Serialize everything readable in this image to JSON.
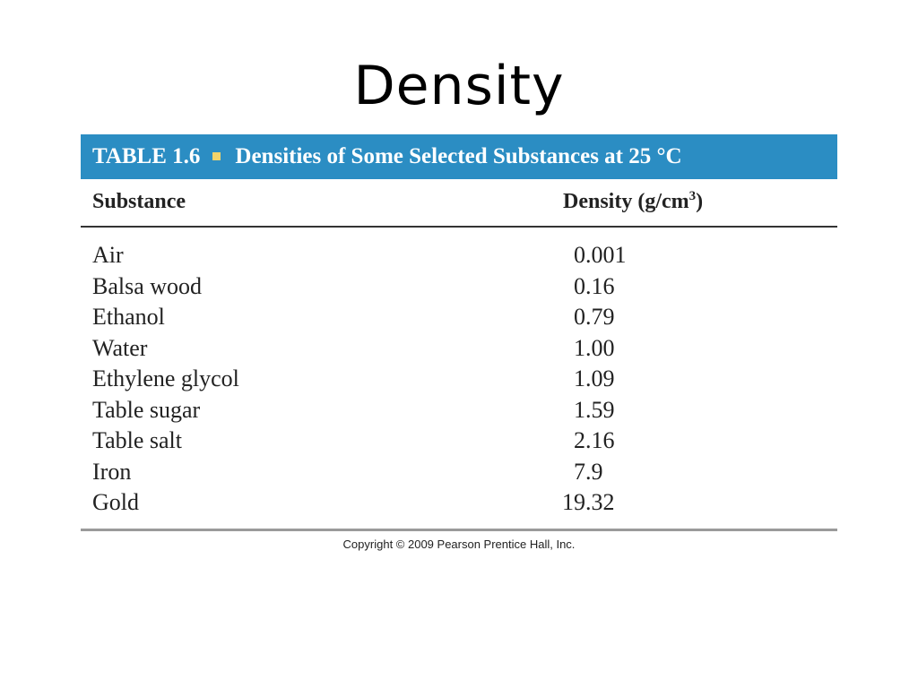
{
  "slide": {
    "title": "Density"
  },
  "table": {
    "number": "TABLE 1.6",
    "caption": "Densities of Some Selected Substances at 25 °C",
    "header_substance": "Substance",
    "header_density": "Density (g/cm",
    "header_density_sup": "3",
    "header_density_close": ")",
    "rows": [
      {
        "substance": "Air",
        "density": "0.001"
      },
      {
        "substance": "Balsa wood",
        "density": "0.16"
      },
      {
        "substance": "Ethanol",
        "density": "0.79"
      },
      {
        "substance": "Water",
        "density": "1.00"
      },
      {
        "substance": "Ethylene glycol",
        "density": "1.09"
      },
      {
        "substance": "Table sugar",
        "density": "1.59"
      },
      {
        "substance": "Table salt",
        "density": "2.16"
      },
      {
        "substance": "Iron",
        "density": "7.9"
      },
      {
        "substance": "Gold",
        "density": "19.32"
      }
    ],
    "copyright": "Copyright © 2009 Pearson Prentice Hall, Inc."
  },
  "colors": {
    "caption_bar": "#2b8dc3",
    "bullet": "#f2d36a"
  }
}
